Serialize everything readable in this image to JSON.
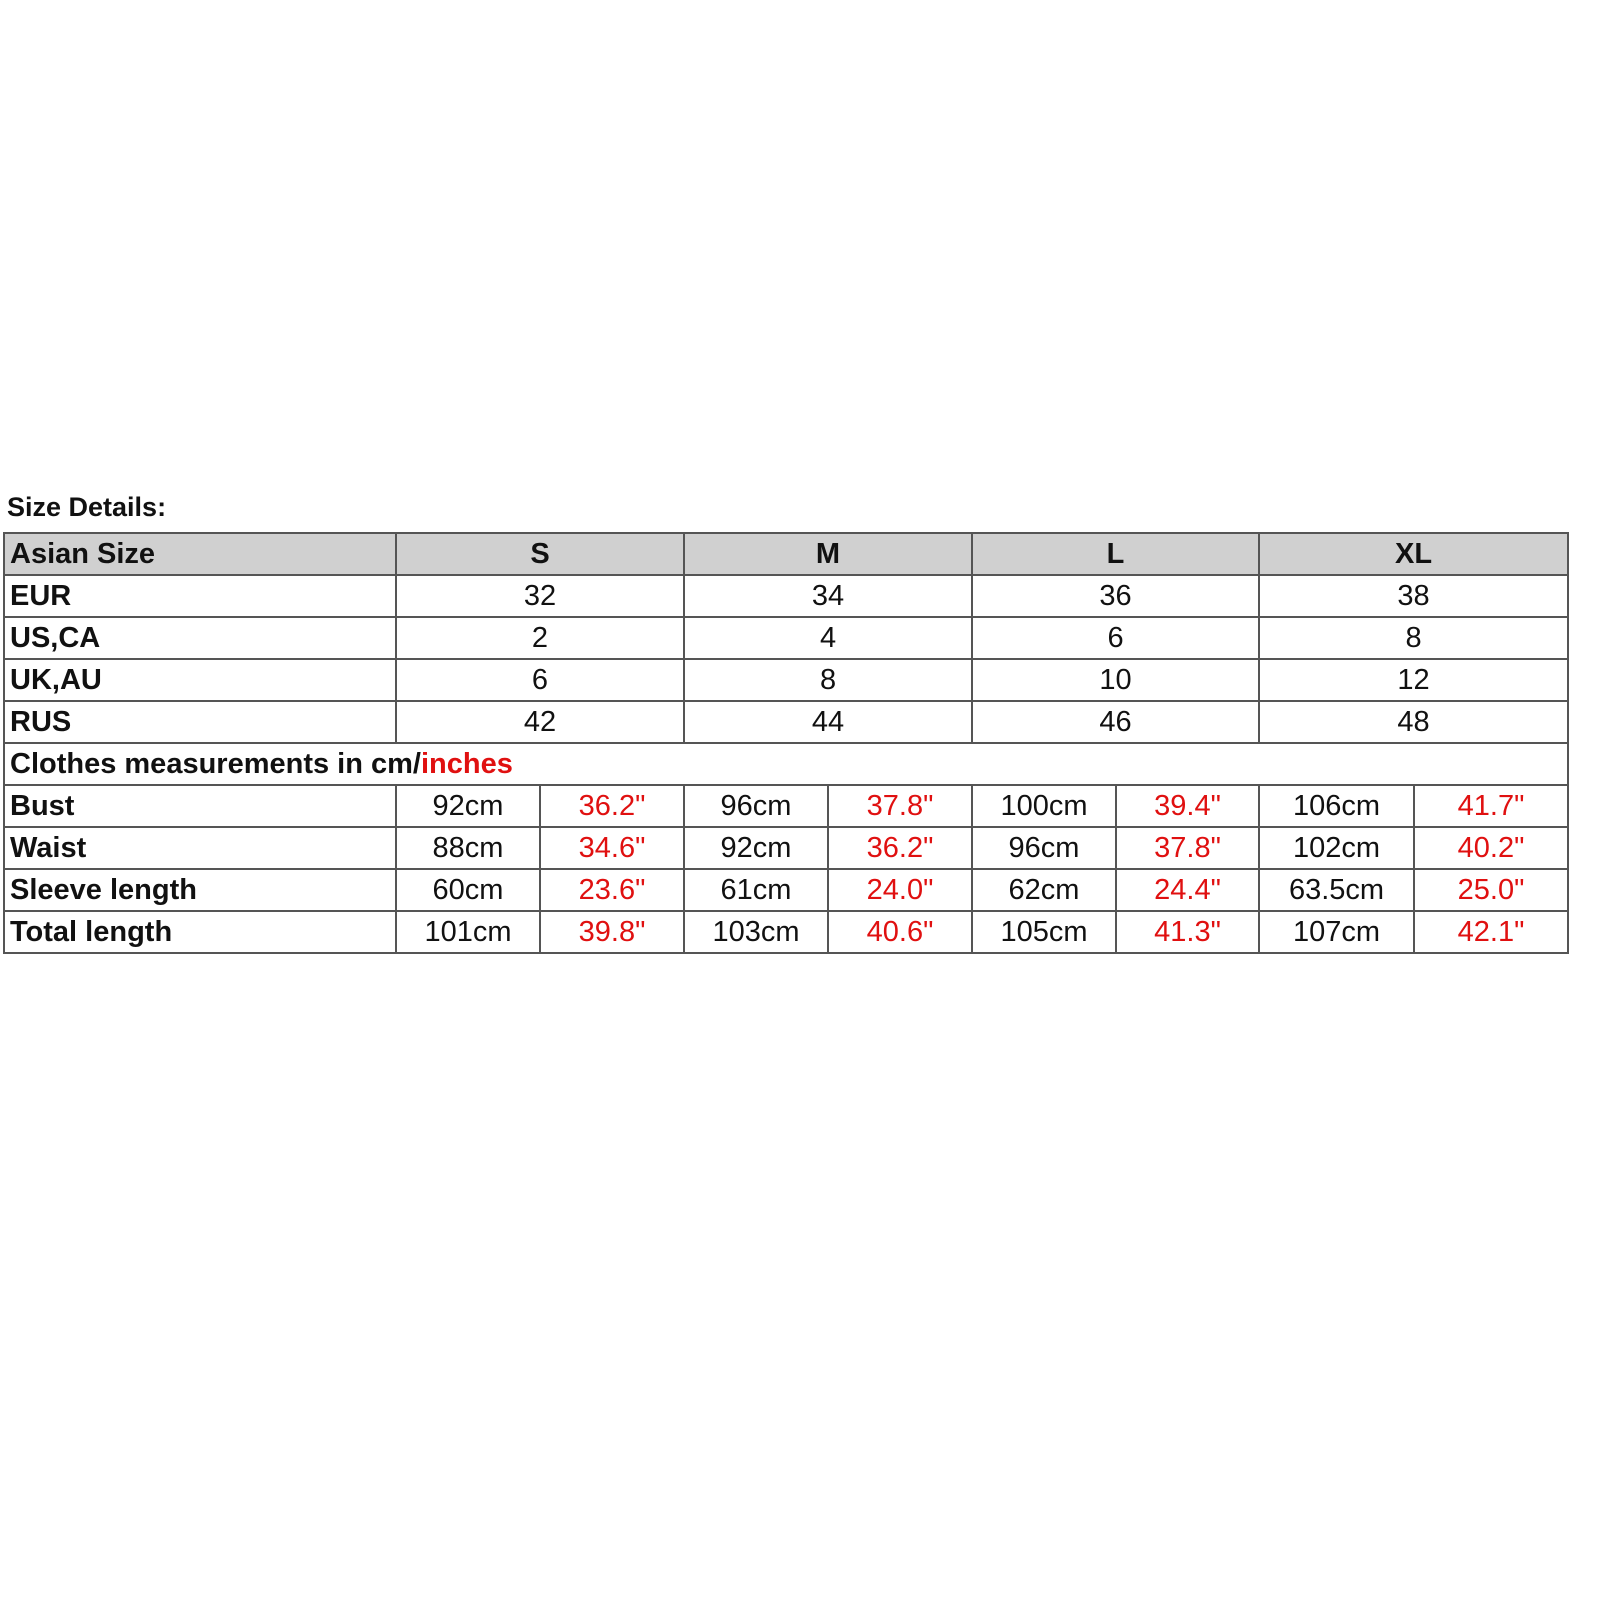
{
  "title": "Size Details:",
  "header": {
    "label": "Asian Size",
    "sizes": [
      "S",
      "M",
      "L",
      "XL"
    ]
  },
  "size_rows": [
    {
      "label": "EUR",
      "values": [
        "32",
        "34",
        "36",
        "38"
      ]
    },
    {
      "label": "US,CA",
      "values": [
        "2",
        "4",
        "6",
        "8"
      ]
    },
    {
      "label": "UK,AU",
      "values": [
        "6",
        "8",
        "10",
        "12"
      ]
    },
    {
      "label": "RUS",
      "values": [
        "42",
        "44",
        "46",
        "48"
      ]
    }
  ],
  "measurements_heading": {
    "prefix": "Clothes measurements in cm/",
    "highlight": "inches"
  },
  "measurement_rows": [
    {
      "label": "Bust",
      "cm": [
        "92cm",
        "96cm",
        "100cm",
        "106cm"
      ],
      "inches": [
        "36.2\"",
        "37.8\"",
        "39.4\"",
        "41.7\""
      ]
    },
    {
      "label": "Waist",
      "cm": [
        "88cm",
        "92cm",
        "96cm",
        "102cm"
      ],
      "inches": [
        "34.6\"",
        "36.2\"",
        "37.8\"",
        "40.2\""
      ]
    },
    {
      "label": "Sleeve length",
      "cm": [
        "60cm",
        "61cm",
        "62cm",
        "63.5cm"
      ],
      "inches": [
        "23.6\"",
        "24.0\"",
        "24.4\"",
        "25.0\""
      ]
    },
    {
      "label": "Total length",
      "cm": [
        "101cm",
        "103cm",
        "105cm",
        "107cm"
      ],
      "inches": [
        "39.8\"",
        "40.6\"",
        "41.3\"",
        "42.1\""
      ]
    }
  ],
  "colors": {
    "header_bg": "#d0d0d0",
    "inches": "#e01010",
    "border": "#555555"
  }
}
